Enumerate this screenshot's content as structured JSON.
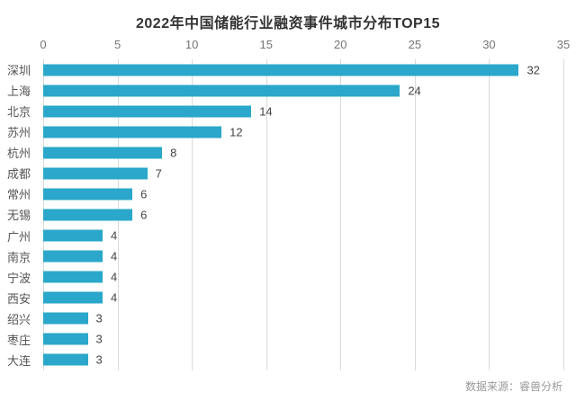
{
  "title": "2022年中国储能行业融资事件城市分布TOP15",
  "source": "数据来源：睿兽分析",
  "colors": {
    "bar": "#2AA7CA",
    "gridline": "#DADADA",
    "title_text": "#333333",
    "category_text": "#555555",
    "value_text": "#444444",
    "tick_text": "#757575",
    "source_text": "#999999",
    "background": "#FFFFFF"
  },
  "chart_data": {
    "type": "bar",
    "orientation": "horizontal",
    "title": "2022年中国储能行业融资事件城市分布TOP15",
    "categories": [
      "深圳",
      "上海",
      "北京",
      "苏州",
      "杭州",
      "成都",
      "常州",
      "无锡",
      "广州",
      "南京",
      "宁波",
      "西安",
      "绍兴",
      "枣庄",
      "大连"
    ],
    "values": [
      32,
      24,
      14,
      12,
      8,
      7,
      6,
      6,
      4,
      4,
      4,
      4,
      3,
      3,
      3
    ],
    "xlabel": "",
    "ylabel": "",
    "xlim": [
      0,
      35
    ],
    "xticks": [
      0,
      5,
      10,
      15,
      20,
      25,
      30,
      35
    ],
    "x_axis_position": "top",
    "grid": "vertical",
    "value_labels": true,
    "legend": "none",
    "source_note": "数据来源：睿兽分析"
  }
}
